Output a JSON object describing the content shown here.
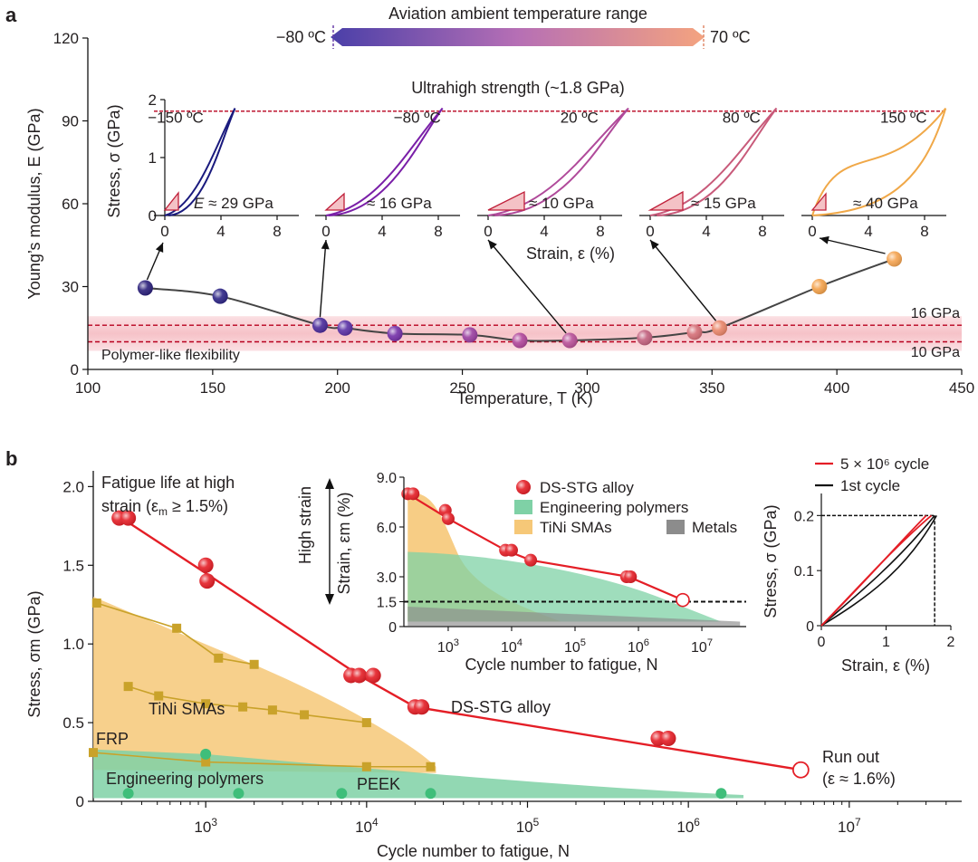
{
  "panel_a": {
    "letter": "a",
    "banner": {
      "label": "Aviation ambient temperature range",
      "left": "−80 ºC",
      "right": "70 ºC",
      "color_left": "#4a3fa8",
      "color_right": "#f4a37f"
    },
    "band_labels": {
      "upper": "16 GPa",
      "lower": "10 GPa",
      "region": "Polymer-like flexibility",
      "band_color": "#f7c6cc",
      "line_color": "#b8001e"
    },
    "strength_label": "Ultrahigh strength (~1.8 GPa)"
  },
  "panel_b": {
    "letter": "b",
    "title_lines": [
      "Fatigue life at high",
      "strain (ε",
      "m",
      " ≥ 1.5%)"
    ],
    "labels": {
      "tini": "TiNi SMAs",
      "dsstg": "DS-STG alloy",
      "frp": "FRP",
      "eng": "Engineering polymers",
      "peek": "PEEK",
      "runout1": "Run out",
      "runout2": "(ε ≈ 1.6%)"
    }
  },
  "chart_data": [
    {
      "type": "line",
      "panel": "a",
      "xlabel": "Temperature, T (K)",
      "ylabel": "Young’s modulus, E (GPa)",
      "xlim": [
        100,
        450
      ],
      "ylim": [
        0,
        120
      ],
      "xticks": [
        100,
        150,
        200,
        250,
        300,
        350,
        400,
        450
      ],
      "yticks": [
        0,
        30,
        60,
        90,
        120
      ],
      "x": [
        123,
        153,
        193,
        203,
        223,
        253,
        273,
        293,
        323,
        343,
        353,
        393,
        423
      ],
      "y": [
        29.5,
        26.5,
        16,
        15,
        13,
        12.5,
        10.5,
        10.5,
        11.5,
        13.5,
        15,
        30,
        40
      ],
      "colors": [
        "#2a1f7a",
        "#2d2585",
        "#4a2a9a",
        "#5a30a5",
        "#7430a8",
        "#9a3fa0",
        "#b0459a",
        "#b84f97",
        "#c2607e",
        "#d56e76",
        "#e98569",
        "#f3a14a",
        "#f5a451"
      ],
      "bands": [
        10,
        16
      ]
    },
    {
      "type": "line",
      "panel": "a-insets",
      "ylabel": "Stress, σ (GPa)",
      "xlabel": "Strain, ε (%)",
      "xticks": [
        0,
        4,
        8
      ],
      "yticks": [
        0,
        1,
        2
      ],
      "strength_line": 1.8,
      "insets": [
        {
          "temp": "−150 ºC",
          "modulus": "≈ 29 GPa",
          "modulus_prefix": "E",
          "color": "#1a1a7e",
          "max_strain": 5.0,
          "hyst": 0.25
        },
        {
          "temp": "−80 ºC",
          "modulus": "≈ 16 GPa",
          "modulus_prefix": "",
          "color": "#7a1fa8",
          "max_strain": 8.3,
          "hyst": 0.15
        },
        {
          "temp": "20 ºC",
          "modulus": "≈ 10 GPa",
          "modulus_prefix": "",
          "color": "#b04a9a",
          "max_strain": 10.0,
          "hyst": 0.4
        },
        {
          "temp": "80 ºC",
          "modulus": "≈ 15 GPa",
          "modulus_prefix": "",
          "color": "#c85a7a",
          "max_strain": 9.0,
          "hyst": 0.4
        },
        {
          "temp": "150 ºC",
          "modulus": "≈ 40 GPa",
          "modulus_prefix": "",
          "color": "#f0a848",
          "max_strain": 9.5,
          "hyst": 0.8
        }
      ]
    },
    {
      "type": "scatter",
      "panel": "b",
      "xlabel": "Cycle number to fatigue, N",
      "ylabel": "Stress, σm (GPa)",
      "xscale": "log",
      "xlim": [
        200,
        50000000
      ],
      "ylim": [
        0,
        2.1
      ],
      "xticks": [
        "10^3",
        "10^4",
        "10^5",
        "10^6",
        "10^7"
      ],
      "yticks": [
        0,
        0.5,
        1.0,
        1.5,
        2.0
      ],
      "series": [
        {
          "name": "DS-STG alloy",
          "x": [
            290,
            330,
            1000,
            1020,
            8000,
            9000,
            11000,
            20000,
            22000,
            650000,
            750000,
            5000000
          ],
          "y": [
            1.8,
            1.8,
            1.5,
            1.4,
            0.8,
            0.8,
            0.8,
            0.6,
            0.6,
            0.4,
            0.4,
            0.2
          ],
          "fit_x": [
            300,
            1000,
            9000,
            20000,
            5000000
          ],
          "fit_y": [
            1.8,
            1.45,
            0.8,
            0.6,
            0.2
          ],
          "color": "#e41e26"
        },
        {
          "name": "TiNi SMAs",
          "x": [
            210,
            660,
            1200,
            2000
          ],
          "y": [
            1.26,
            1.1,
            0.91,
            0.87
          ],
          "color": "#c9a22a"
        },
        {
          "name": "TiNi SMAs",
          "x": [
            330,
            510,
            1000,
            1700,
            2600,
            4100,
            10000
          ],
          "y": [
            0.73,
            0.67,
            0.62,
            0.6,
            0.58,
            0.55,
            0.5
          ],
          "color": "#c9a22a"
        },
        {
          "name": "TiNi SMAs",
          "x": [
            200,
            1000,
            10000,
            25000
          ],
          "y": [
            0.31,
            0.25,
            0.22,
            0.22
          ],
          "color": "#c9a22a"
        },
        {
          "name": "Engineering polymers",
          "x": [
            330,
            1000,
            1600,
            7000,
            25000,
            1600000
          ],
          "y": [
            0.05,
            0.3,
            0.05,
            0.05,
            0.05,
            0.05
          ],
          "color": "#3fbe7a"
        }
      ]
    },
    {
      "type": "area",
      "panel": "b-inset-1",
      "xlabel": "Cycle number to fatigue, N",
      "ylabel": "Strain, εm (%)",
      "side_label": "High strain",
      "xscale": "log",
      "xlim": [
        200,
        50000000
      ],
      "ylim": [
        0,
        9
      ],
      "xticks": [
        "10^3",
        "10^4",
        "10^5",
        "10^6",
        "10^7"
      ],
      "yticks": [
        "0",
        "1.5",
        "3.0",
        "6.0",
        "9.0"
      ],
      "hline": 1.5,
      "legend": [
        "DS-STG alloy",
        "Engineering polymers",
        "TiNi SMAs",
        "Metals"
      ],
      "series": [
        {
          "name": "DS-STG alloy",
          "x": [
            230,
            280,
            900,
            1000,
            8000,
            10000,
            20000,
            650000,
            750000,
            5000000
          ],
          "y": [
            8.0,
            8.0,
            7.0,
            6.5,
            4.6,
            4.6,
            4.0,
            3.0,
            3.0,
            1.6
          ],
          "color": "#e41e26"
        }
      ]
    },
    {
      "type": "line",
      "panel": "b-inset-2",
      "xlabel": "Strain, ε (%)",
      "ylabel": "Stress, σ (GPa)",
      "xlim": [
        0,
        2
      ],
      "ylim": [
        0,
        0.24
      ],
      "xticks": [
        0,
        1,
        2
      ],
      "yticks": [
        0,
        0.1,
        0.2
      ],
      "series": [
        {
          "name": "5 × 10⁶ cycle",
          "color": "#e41e26"
        },
        {
          "name": "1st cycle",
          "color": "#111111"
        }
      ]
    }
  ]
}
